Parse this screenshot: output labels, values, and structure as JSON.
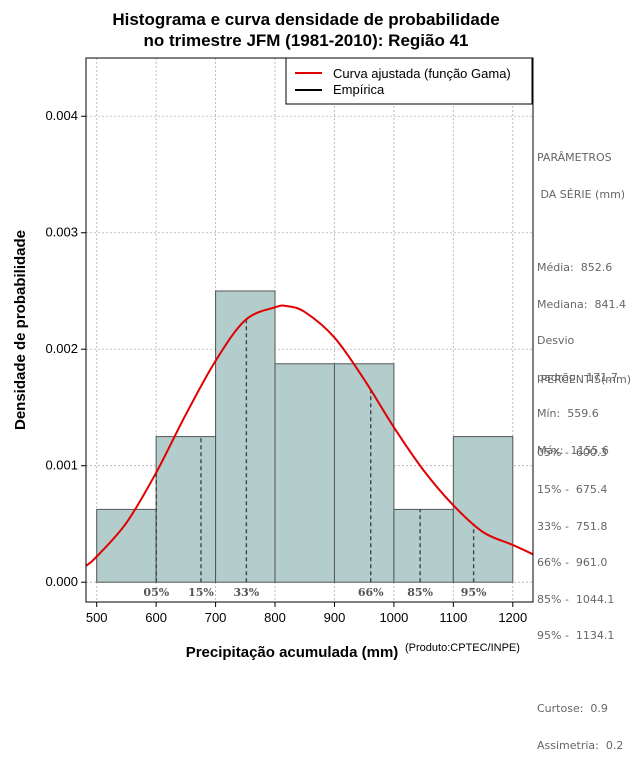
{
  "colors": {
    "bar_fill": "#b3cccc",
    "bar_stroke": "#555555",
    "curve": "#e00000",
    "percentile_line": "#444444",
    "grid": "#b0b0b0",
    "side_text": "#666666"
  },
  "chart_data": {
    "type": "bar",
    "title": [
      "Histograma e curva densidade de probabilidade",
      "no trimestre JFM (1981-2010): Região 41"
    ],
    "xlabel": "Precipitação acumulada (mm)",
    "ylabel": "Densidade de probabilidade",
    "credit": "(Produto:CPTEC/INPE)",
    "xlim": [
      482,
      1234
    ],
    "ylim": [
      -0.00017,
      0.0045
    ],
    "x_ticks": [
      500,
      600,
      700,
      800,
      900,
      1000,
      1100,
      1200
    ],
    "x_tick_labels": [
      "500",
      "600",
      "700",
      "800",
      "900",
      "1000",
      "1100",
      "1200"
    ],
    "y_ticks": [
      0.0,
      0.001,
      0.002,
      0.003,
      0.004
    ],
    "y_tick_labels": [
      "0.000",
      "0.001",
      "0.002",
      "0.003",
      "0.004"
    ],
    "grid": true,
    "bins": [
      {
        "x0": 500,
        "x1": 600,
        "density": 0.000625
      },
      {
        "x0": 600,
        "x1": 700,
        "density": 0.00125
      },
      {
        "x0": 700,
        "x1": 800,
        "density": 0.0025
      },
      {
        "x0": 800,
        "x1": 900,
        "density": 0.001875
      },
      {
        "x0": 900,
        "x1": 1000,
        "density": 0.001875
      },
      {
        "x0": 1000,
        "x1": 1100,
        "density": 0.000625
      },
      {
        "x0": 1100,
        "x1": 1200,
        "density": 0.00125
      }
    ],
    "fitted_curve": {
      "name": "Curva ajustada (função Gama)",
      "x": [
        482,
        500,
        550,
        600,
        650,
        700,
        750,
        800,
        820,
        850,
        900,
        950,
        1000,
        1050,
        1100,
        1150,
        1200,
        1234
      ],
      "y": [
        0.00014,
        0.00022,
        0.00051,
        0.00094,
        0.00144,
        0.0019,
        0.00225,
        0.00236,
        0.00237,
        0.00232,
        0.0021,
        0.00174,
        0.00133,
        0.00096,
        0.00066,
        0.00043,
        0.00032,
        0.00024
      ]
    },
    "percentiles": [
      {
        "label": "05%",
        "x": 600.3
      },
      {
        "label": "15%",
        "x": 675.4
      },
      {
        "label": "33%",
        "x": 751.8
      },
      {
        "label": "66%",
        "x": 961.0
      },
      {
        "label": "85%",
        "x": 1044.1
      },
      {
        "label": "95%",
        "x": 1134.1
      }
    ],
    "legend": {
      "placement": "top-right",
      "entries": [
        {
          "label": "Curva ajustada (função Gama)",
          "color": "#e00000"
        },
        {
          "label": "Empírica",
          "color": "#000000"
        }
      ]
    }
  },
  "side_panel": {
    "params_title_1": "PARÂMETROS",
    "params_title_2": " DA SÉRIE (mm)",
    "media": "Média:  852.6",
    "mediana": "Mediana:  841.4",
    "desvio_1": "Desvio",
    "desvio_2": "padrão:  171.7",
    "min": "Mín:  559.6",
    "max": "Máx:  1155.6",
    "pct_title": " PERCENTIS(mm)",
    "pct_rows": [
      "05% -  600.3",
      "15% -  675.4",
      "33% -  751.8",
      "66% -  961.0",
      "85% -  1044.1",
      "95% -  1134.1"
    ],
    "curtose": "Curtose:  0.9",
    "assimetria": "Assimetria:  0.2"
  }
}
